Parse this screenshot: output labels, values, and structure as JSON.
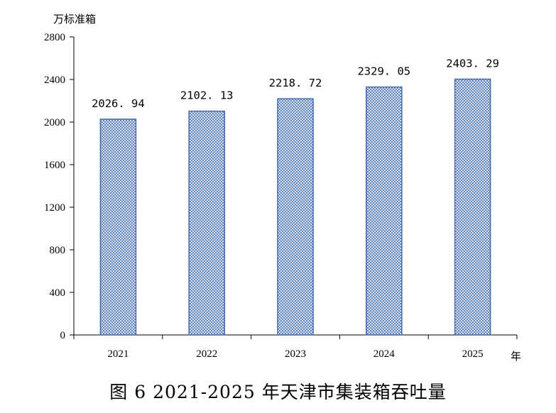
{
  "caption": "图 6   2021-2025 年天津市集装箱吞吐量",
  "chart_data": {
    "type": "bar",
    "ylabel": "万标准箱",
    "xlabel": "年",
    "categories": [
      "2021",
      "2022",
      "2023",
      "2024",
      "2025"
    ],
    "values": [
      2026.94,
      2102.13,
      2218.72,
      2329.05,
      2403.29
    ],
    "value_labels": [
      "2026. 94",
      "2102. 13",
      "2218. 72",
      "2329. 05",
      "2403. 29"
    ],
    "yticks": [
      "0",
      "400",
      "800",
      "1200",
      "1600",
      "2000",
      "2400",
      "2800"
    ],
    "ylim": [
      0,
      2800
    ],
    "grid": false,
    "legend": "none",
    "bar_fill_pattern": "crosshatch",
    "bar_color": "#4a6fb0"
  }
}
